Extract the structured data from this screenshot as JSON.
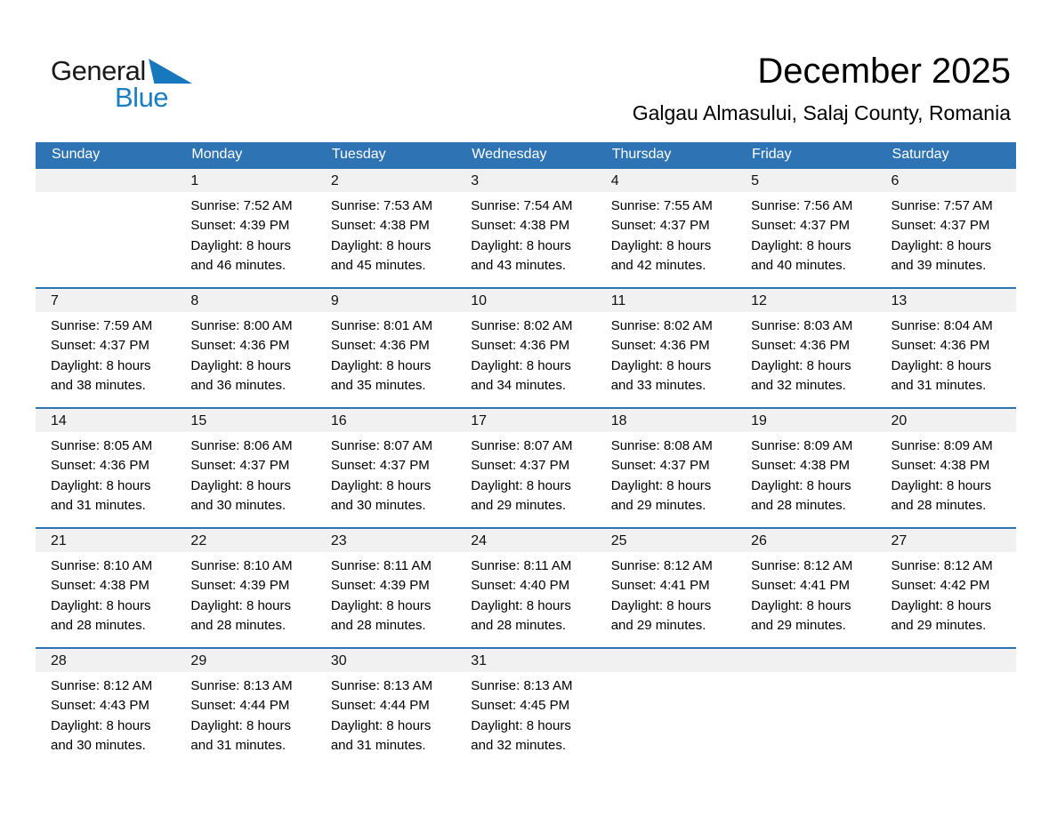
{
  "logo": {
    "general": "General",
    "blue": "Blue"
  },
  "header": {
    "title": "December 2025",
    "subtitle": "Galgau Almasului, Salaj County, Romania"
  },
  "colors": {
    "header_bg": "#2E74B5",
    "week_border": "#2E74B5",
    "day_band_bg": "#F1F1F1",
    "logo_blue": "#1B7EC2",
    "logo_triangle": "#1878BD"
  },
  "weekdays": [
    "Sunday",
    "Monday",
    "Tuesday",
    "Wednesday",
    "Thursday",
    "Friday",
    "Saturday"
  ],
  "weeks": [
    [
      null,
      {
        "day": "1",
        "sunrise": "Sunrise: 7:52 AM",
        "sunset": "Sunset: 4:39 PM",
        "daylight1": "Daylight: 8 hours",
        "daylight2": "and 46 minutes."
      },
      {
        "day": "2",
        "sunrise": "Sunrise: 7:53 AM",
        "sunset": "Sunset: 4:38 PM",
        "daylight1": "Daylight: 8 hours",
        "daylight2": "and 45 minutes."
      },
      {
        "day": "3",
        "sunrise": "Sunrise: 7:54 AM",
        "sunset": "Sunset: 4:38 PM",
        "daylight1": "Daylight: 8 hours",
        "daylight2": "and 43 minutes."
      },
      {
        "day": "4",
        "sunrise": "Sunrise: 7:55 AM",
        "sunset": "Sunset: 4:37 PM",
        "daylight1": "Daylight: 8 hours",
        "daylight2": "and 42 minutes."
      },
      {
        "day": "5",
        "sunrise": "Sunrise: 7:56 AM",
        "sunset": "Sunset: 4:37 PM",
        "daylight1": "Daylight: 8 hours",
        "daylight2": "and 40 minutes."
      },
      {
        "day": "6",
        "sunrise": "Sunrise: 7:57 AM",
        "sunset": "Sunset: 4:37 PM",
        "daylight1": "Daylight: 8 hours",
        "daylight2": "and 39 minutes."
      }
    ],
    [
      {
        "day": "7",
        "sunrise": "Sunrise: 7:59 AM",
        "sunset": "Sunset: 4:37 PM",
        "daylight1": "Daylight: 8 hours",
        "daylight2": "and 38 minutes."
      },
      {
        "day": "8",
        "sunrise": "Sunrise: 8:00 AM",
        "sunset": "Sunset: 4:36 PM",
        "daylight1": "Daylight: 8 hours",
        "daylight2": "and 36 minutes."
      },
      {
        "day": "9",
        "sunrise": "Sunrise: 8:01 AM",
        "sunset": "Sunset: 4:36 PM",
        "daylight1": "Daylight: 8 hours",
        "daylight2": "and 35 minutes."
      },
      {
        "day": "10",
        "sunrise": "Sunrise: 8:02 AM",
        "sunset": "Sunset: 4:36 PM",
        "daylight1": "Daylight: 8 hours",
        "daylight2": "and 34 minutes."
      },
      {
        "day": "11",
        "sunrise": "Sunrise: 8:02 AM",
        "sunset": "Sunset: 4:36 PM",
        "daylight1": "Daylight: 8 hours",
        "daylight2": "and 33 minutes."
      },
      {
        "day": "12",
        "sunrise": "Sunrise: 8:03 AM",
        "sunset": "Sunset: 4:36 PM",
        "daylight1": "Daylight: 8 hours",
        "daylight2": "and 32 minutes."
      },
      {
        "day": "13",
        "sunrise": "Sunrise: 8:04 AM",
        "sunset": "Sunset: 4:36 PM",
        "daylight1": "Daylight: 8 hours",
        "daylight2": "and 31 minutes."
      }
    ],
    [
      {
        "day": "14",
        "sunrise": "Sunrise: 8:05 AM",
        "sunset": "Sunset: 4:36 PM",
        "daylight1": "Daylight: 8 hours",
        "daylight2": "and 31 minutes."
      },
      {
        "day": "15",
        "sunrise": "Sunrise: 8:06 AM",
        "sunset": "Sunset: 4:37 PM",
        "daylight1": "Daylight: 8 hours",
        "daylight2": "and 30 minutes."
      },
      {
        "day": "16",
        "sunrise": "Sunrise: 8:07 AM",
        "sunset": "Sunset: 4:37 PM",
        "daylight1": "Daylight: 8 hours",
        "daylight2": "and 30 minutes."
      },
      {
        "day": "17",
        "sunrise": "Sunrise: 8:07 AM",
        "sunset": "Sunset: 4:37 PM",
        "daylight1": "Daylight: 8 hours",
        "daylight2": "and 29 minutes."
      },
      {
        "day": "18",
        "sunrise": "Sunrise: 8:08 AM",
        "sunset": "Sunset: 4:37 PM",
        "daylight1": "Daylight: 8 hours",
        "daylight2": "and 29 minutes."
      },
      {
        "day": "19",
        "sunrise": "Sunrise: 8:09 AM",
        "sunset": "Sunset: 4:38 PM",
        "daylight1": "Daylight: 8 hours",
        "daylight2": "and 28 minutes."
      },
      {
        "day": "20",
        "sunrise": "Sunrise: 8:09 AM",
        "sunset": "Sunset: 4:38 PM",
        "daylight1": "Daylight: 8 hours",
        "daylight2": "and 28 minutes."
      }
    ],
    [
      {
        "day": "21",
        "sunrise": "Sunrise: 8:10 AM",
        "sunset": "Sunset: 4:38 PM",
        "daylight1": "Daylight: 8 hours",
        "daylight2": "and 28 minutes."
      },
      {
        "day": "22",
        "sunrise": "Sunrise: 8:10 AM",
        "sunset": "Sunset: 4:39 PM",
        "daylight1": "Daylight: 8 hours",
        "daylight2": "and 28 minutes."
      },
      {
        "day": "23",
        "sunrise": "Sunrise: 8:11 AM",
        "sunset": "Sunset: 4:39 PM",
        "daylight1": "Daylight: 8 hours",
        "daylight2": "and 28 minutes."
      },
      {
        "day": "24",
        "sunrise": "Sunrise: 8:11 AM",
        "sunset": "Sunset: 4:40 PM",
        "daylight1": "Daylight: 8 hours",
        "daylight2": "and 28 minutes."
      },
      {
        "day": "25",
        "sunrise": "Sunrise: 8:12 AM",
        "sunset": "Sunset: 4:41 PM",
        "daylight1": "Daylight: 8 hours",
        "daylight2": "and 29 minutes."
      },
      {
        "day": "26",
        "sunrise": "Sunrise: 8:12 AM",
        "sunset": "Sunset: 4:41 PM",
        "daylight1": "Daylight: 8 hours",
        "daylight2": "and 29 minutes."
      },
      {
        "day": "27",
        "sunrise": "Sunrise: 8:12 AM",
        "sunset": "Sunset: 4:42 PM",
        "daylight1": "Daylight: 8 hours",
        "daylight2": "and 29 minutes."
      }
    ],
    [
      {
        "day": "28",
        "sunrise": "Sunrise: 8:12 AM",
        "sunset": "Sunset: 4:43 PM",
        "daylight1": "Daylight: 8 hours",
        "daylight2": "and 30 minutes."
      },
      {
        "day": "29",
        "sunrise": "Sunrise: 8:13 AM",
        "sunset": "Sunset: 4:44 PM",
        "daylight1": "Daylight: 8 hours",
        "daylight2": "and 31 minutes."
      },
      {
        "day": "30",
        "sunrise": "Sunrise: 8:13 AM",
        "sunset": "Sunset: 4:44 PM",
        "daylight1": "Daylight: 8 hours",
        "daylight2": "and 31 minutes."
      },
      {
        "day": "31",
        "sunrise": "Sunrise: 8:13 AM",
        "sunset": "Sunset: 4:45 PM",
        "daylight1": "Daylight: 8 hours",
        "daylight2": "and 32 minutes."
      },
      null,
      null,
      null
    ]
  ]
}
